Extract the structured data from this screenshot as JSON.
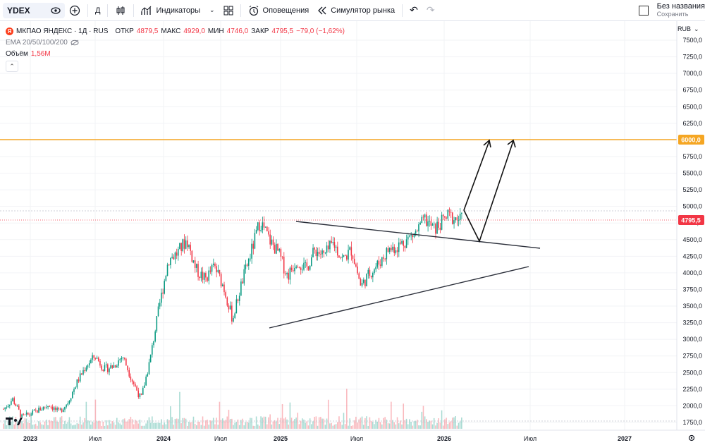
{
  "toolbar": {
    "symbol": "YDEX",
    "interval": "Д",
    "indicators_label": "Индикаторы",
    "alerts_label": "Оповещения",
    "replay_label": "Симулятор рынка",
    "layout_name": "Без названия",
    "save_label": "Сохранить"
  },
  "legend": {
    "title": "МКПАО ЯНДЕКС · 1Д · RUS",
    "open_label": "ОТКР",
    "open": "4879,5",
    "high_label": "МАКС",
    "high": "4929,0",
    "low_label": "МИН",
    "low": "4746,0",
    "close_label": "ЗАКР",
    "close": "4795,5",
    "change": "−79,0 (−1,62%)",
    "ema": "EMA 20/50/100/200",
    "volume_label": "Объём",
    "volume": "1,56M"
  },
  "currency": "RUB",
  "colors": {
    "up": "#089981",
    "down": "#f23645",
    "level": "#f5a623",
    "line": "#1e1e1e"
  },
  "chart_data": {
    "type": "candlestick",
    "yticks": [
      "7500,0",
      "7250,0",
      "7000,0",
      "6750,0",
      "6500,0",
      "6250,0",
      "6000,0",
      "5750,0",
      "5500,0",
      "5250,0",
      "5000,0",
      "4750,0",
      "4500,0",
      "4250,0",
      "4000,0",
      "3750,0",
      "3500,0",
      "3250,0",
      "3000,0",
      "2750,0",
      "2500,0",
      "2250,0",
      "2000,0",
      "1750,0"
    ],
    "ylim": [
      1625,
      7625
    ],
    "xticks": [
      "2023",
      "Июл",
      "2024",
      "Июл",
      "2025",
      "Июл",
      "2026",
      "Июл",
      "2027"
    ],
    "horizontal_level": {
      "value": 6000,
      "label": "6000,0"
    },
    "last_price_label": "4795,5",
    "last_price": 4795.5,
    "price_path": [
      {
        "t": 0.0,
        "p": 1950
      },
      {
        "t": 0.02,
        "p": 2100
      },
      {
        "t": 0.04,
        "p": 1830
      },
      {
        "t": 0.06,
        "p": 1880
      },
      {
        "t": 0.08,
        "p": 1950
      },
      {
        "t": 0.1,
        "p": 2020
      },
      {
        "t": 0.12,
        "p": 1900
      },
      {
        "t": 0.14,
        "p": 2050
      },
      {
        "t": 0.16,
        "p": 2350
      },
      {
        "t": 0.18,
        "p": 2600
      },
      {
        "t": 0.2,
        "p": 2750
      },
      {
        "t": 0.22,
        "p": 2550
      },
      {
        "t": 0.24,
        "p": 2600
      },
      {
        "t": 0.26,
        "p": 2750
      },
      {
        "t": 0.28,
        "p": 2400
      },
      {
        "t": 0.3,
        "p": 2100
      },
      {
        "t": 0.32,
        "p": 2700
      },
      {
        "t": 0.34,
        "p": 3500
      },
      {
        "t": 0.36,
        "p": 4200
      },
      {
        "t": 0.38,
        "p": 4300
      },
      {
        "t": 0.4,
        "p": 4500
      },
      {
        "t": 0.42,
        "p": 4050
      },
      {
        "t": 0.44,
        "p": 3900
      },
      {
        "t": 0.46,
        "p": 4100
      },
      {
        "t": 0.48,
        "p": 3800
      },
      {
        "t": 0.5,
        "p": 3300
      },
      {
        "t": 0.52,
        "p": 3850
      },
      {
        "t": 0.54,
        "p": 4300
      },
      {
        "t": 0.56,
        "p": 4780
      },
      {
        "t": 0.58,
        "p": 4500
      },
      {
        "t": 0.6,
        "p": 4300
      },
      {
        "t": 0.62,
        "p": 3950
      },
      {
        "t": 0.64,
        "p": 4200
      },
      {
        "t": 0.66,
        "p": 4050
      },
      {
        "t": 0.68,
        "p": 4350
      },
      {
        "t": 0.7,
        "p": 4250
      },
      {
        "t": 0.72,
        "p": 4450
      },
      {
        "t": 0.74,
        "p": 4200
      },
      {
        "t": 0.76,
        "p": 4350
      },
      {
        "t": 0.78,
        "p": 3800
      },
      {
        "t": 0.8,
        "p": 4000
      },
      {
        "t": 0.82,
        "p": 4150
      },
      {
        "t": 0.84,
        "p": 4350
      },
      {
        "t": 0.86,
        "p": 4400
      },
      {
        "t": 0.88,
        "p": 4500
      },
      {
        "t": 0.9,
        "p": 4600
      },
      {
        "t": 0.92,
        "p": 4800
      },
      {
        "t": 0.94,
        "p": 4650
      },
      {
        "t": 0.97,
        "p": 4850
      },
      {
        "t": 1.0,
        "p": 4795
      }
    ]
  }
}
